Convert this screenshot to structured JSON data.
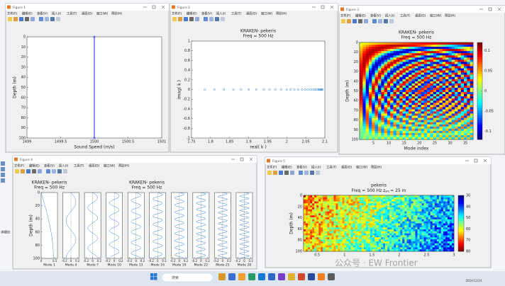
{
  "menu": [
    "文件(F)",
    "编辑(E)",
    "查看(V)",
    "插入(I)",
    "工具(T)",
    "桌面(D)",
    "窗口(W)",
    "帮助(H)"
  ],
  "windows": [
    {
      "title": "Figure 1",
      "plot": {
        "type": "line",
        "xlabel": "Sound Speed (m/s)",
        "ylabel": "Depth (m)",
        "x": [
          1500,
          1500
        ],
        "y": [
          0,
          100
        ],
        "color": "#1f1fff",
        "xlim": [
          1499,
          1501
        ],
        "ylim": [
          0,
          100
        ],
        "xticks": [
          1499,
          1499.5,
          1500,
          1500.5,
          1501
        ],
        "yticks": [
          0,
          10,
          20,
          30,
          40,
          50,
          60,
          70,
          80,
          90,
          100
        ],
        "y_reversed": true
      }
    },
    {
      "title": "Figure 2",
      "plot": {
        "type": "scatter",
        "title": "KRAKEN- pekeris",
        "subtitle": "Freq = 500 Hz",
        "xlabel": "real( k )",
        "ylabel": "imag( k )",
        "x": [
          1.785,
          1.81,
          1.835,
          1.86,
          1.88,
          1.9,
          1.92,
          1.94,
          1.955,
          1.97,
          1.985,
          2,
          2.01,
          2.02,
          2.03,
          2.04,
          2.048,
          2.055,
          2.062,
          2.068,
          2.073,
          2.077,
          2.081,
          2.084,
          2.087,
          2.089,
          2.091,
          2.092,
          2.093
        ],
        "y": [
          0,
          0,
          0,
          0,
          0,
          0,
          0,
          0,
          0,
          0,
          0,
          0,
          0,
          0,
          0,
          0,
          0,
          0,
          0,
          0,
          0,
          0,
          0,
          0,
          0,
          0,
          0,
          0,
          0
        ],
        "color": "#3d8fd0",
        "xlim": [
          1.75,
          2.1
        ],
        "ylim": [
          -1,
          1
        ],
        "xticks": [
          1.75,
          1.8,
          1.85,
          1.9,
          1.95,
          2,
          2.05,
          2.1
        ],
        "yticks": [
          1,
          0.8,
          0.6,
          0.4,
          0.2,
          0,
          -0.2,
          -0.4,
          -0.6,
          -0.8,
          -1
        ],
        "y_reversed": false
      }
    },
    {
      "title": "Figure 3",
      "plot": {
        "type": "heatmap",
        "title": "KRAKEN- pekeris",
        "subtitle": "Freq = 500 Hz",
        "xlabel": "Mode index",
        "ylabel": "Depth (m)",
        "xlim": [
          0.5,
          37.5
        ],
        "ylim": [
          0,
          100
        ],
        "xticks": [
          5,
          10,
          15,
          20,
          25,
          30,
          35
        ],
        "yticks": [
          0,
          10,
          20,
          30,
          40,
          50,
          60,
          70,
          80,
          90,
          100
        ],
        "y_reversed": true,
        "colorbar": {
          "lim": [
            -0.12,
            0.12
          ],
          "ticks": [
            0.1,
            0.05,
            0,
            -0.05,
            -0.1
          ]
        }
      }
    },
    {
      "title": "Figure 4",
      "plot": {
        "type": "modes",
        "title": "KRAKEN- pekeris",
        "subtitle": "Freq = 500 Hz",
        "ylabel": "Depth (m)",
        "ylim": [
          0,
          100
        ],
        "yticks": [
          0,
          20,
          40,
          60,
          80,
          100
        ],
        "y_reversed": true,
        "modes": [
          {
            "name": "Mode 1",
            "xlim": [
              0,
              0.6
            ],
            "xticks": [
              0,
              0.5
            ]
          },
          {
            "name": "Mode 4",
            "xlim": [
              -0.25,
              0.25
            ],
            "xticks": [
              -0.2,
              0,
              0.2
            ]
          },
          {
            "name": "Mode 7",
            "xlim": [
              -0.25,
              0.25
            ],
            "xticks": [
              -0.2,
              0,
              0.2
            ]
          },
          {
            "name": "Mode 10",
            "xlim": [
              -0.25,
              0.25
            ],
            "xticks": [
              -0.2,
              0,
              0.2
            ]
          },
          {
            "name": "Mode 13",
            "xlim": [
              -0.25,
              0.25
            ],
            "xticks": [
              -0.2,
              0,
              0.2
            ]
          },
          {
            "name": "Mode 16",
            "xlim": [
              -0.25,
              0.25
            ],
            "xticks": [
              -0.2,
              0,
              0.2
            ]
          },
          {
            "name": "Mode 19",
            "xlim": [
              -0.25,
              0.25
            ],
            "xticks": [
              -0.2,
              0,
              0.2
            ]
          },
          {
            "name": "Mode 22",
            "xlim": [
              -0.25,
              0.25
            ],
            "xticks": [
              -0.2,
              0,
              0.2
            ]
          },
          {
            "name": "Mode 25",
            "xlim": [
              -0.25,
              0.25
            ],
            "xticks": [
              -0.2,
              0,
              0.2
            ]
          },
          {
            "name": "Mode 28",
            "xlim": [
              -0.25,
              0.25
            ],
            "xticks": [
              -0.2,
              0,
              0.2
            ]
          }
        ]
      }
    },
    {
      "title": "Figure 5",
      "plot": {
        "type": "field",
        "title": "pekeris",
        "subtitle": [
          "Freq = 500 Hz   z",
          "src",
          "= 25 m"
        ],
        "ylabel": "Depth (m)",
        "xlim": [
          0.25,
          3
        ],
        "ylim": [
          0,
          100
        ],
        "xticks": [
          0.5,
          1,
          1.5,
          2,
          2.5,
          3
        ],
        "yticks": [
          0,
          20,
          40,
          60,
          80,
          100
        ],
        "y_reversed": true,
        "colorbar": {
          "lim": [
            30,
            80
          ],
          "ticks": [
            30,
            40,
            50,
            60,
            70,
            80
          ]
        }
      }
    }
  ],
  "taskbar": {
    "search": "搜索",
    "date": "2024/12/24"
  },
  "watermark": "公众号 · EW Frontier",
  "desktop_text": "详细信"
}
